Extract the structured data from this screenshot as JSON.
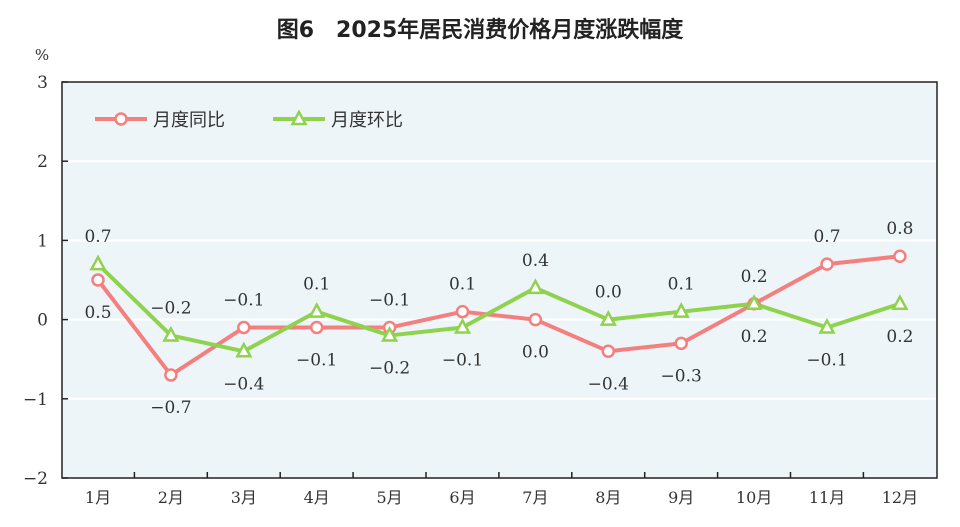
{
  "chart_data": {
    "type": "line",
    "title": "图6　2025年居民消费价格月度涨跌幅度",
    "ylabel": "%",
    "ylim": [
      -2,
      3
    ],
    "yticks": [
      "3",
      "2",
      "1",
      "0",
      "−1",
      "−2"
    ],
    "ytick_values": [
      3,
      2,
      1,
      0,
      -1,
      -2
    ],
    "grid": true,
    "legend": "top-left",
    "categories": [
      "1月",
      "2月",
      "3月",
      "4月",
      "5月",
      "6月",
      "7月",
      "8月",
      "9月",
      "10月",
      "11月",
      "12月"
    ],
    "series": [
      {
        "name": "月度同比",
        "color": "#f47f7f",
        "marker": "circle",
        "values": [
          0.5,
          -0.7,
          -0.1,
          -0.1,
          -0.1,
          0.1,
          0.0,
          -0.4,
          -0.3,
          0.2,
          0.7,
          0.8
        ],
        "labels": [
          "0.5",
          "−0.7",
          "−0.1",
          "−0.1",
          "−0.1",
          "0.1",
          "0.0",
          "−0.4",
          "−0.3",
          "0.2",
          "0.7",
          "0.8"
        ]
      },
      {
        "name": "月度环比",
        "color": "#8ed24e",
        "marker": "triangle",
        "values": [
          0.7,
          -0.2,
          -0.4,
          0.1,
          -0.2,
          -0.1,
          0.4,
          0.0,
          0.1,
          0.2,
          -0.1,
          0.2
        ],
        "labels": [
          "0.7",
          "−0.2",
          "−0.4",
          "0.1",
          "−0.2",
          "−0.1",
          "0.4",
          "0.0",
          "0.1",
          "0.2",
          "−0.1",
          "0.2"
        ]
      }
    ]
  }
}
